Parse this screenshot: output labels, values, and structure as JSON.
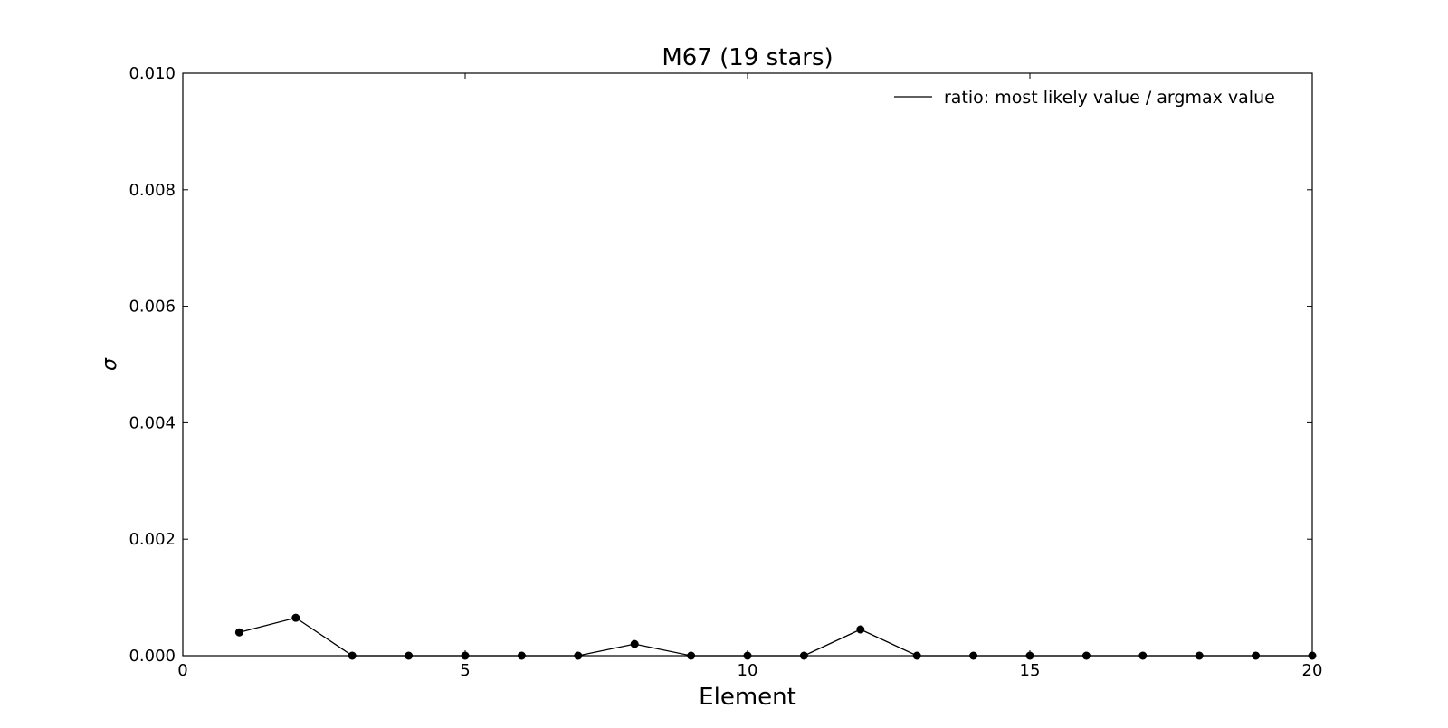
{
  "chart_data": {
    "type": "line",
    "title": "M67 (19 stars)",
    "xlabel": "Element",
    "ylabel": "σ",
    "xlim": [
      0,
      20
    ],
    "ylim": [
      0.0,
      0.01
    ],
    "x_ticks": [
      0,
      5,
      10,
      15,
      20
    ],
    "x_tick_labels": [
      "0",
      "5",
      "10",
      "15",
      "20"
    ],
    "y_ticks": [
      0.0,
      0.002,
      0.004,
      0.006,
      0.008,
      0.01
    ],
    "y_tick_labels": [
      "0.000",
      "0.002",
      "0.004",
      "0.006",
      "0.008",
      "0.010"
    ],
    "grid": false,
    "legend_position": "upper-right",
    "series": [
      {
        "name": "ratio: most likely value / argmax value",
        "color": "#000000",
        "marker": "circle",
        "x": [
          1,
          2,
          3,
          4,
          5,
          6,
          7,
          8,
          9,
          10,
          11,
          12,
          13,
          14,
          15,
          16,
          17,
          18,
          19,
          20
        ],
        "y": [
          0.0004,
          0.00065,
          0.0,
          0.0,
          0.0,
          0.0,
          0.0,
          0.0002,
          0.0,
          0.0,
          0.0,
          0.00045,
          0.0,
          0.0,
          0.0,
          0.0,
          0.0,
          0.0,
          0.0,
          0.0
        ]
      }
    ]
  }
}
